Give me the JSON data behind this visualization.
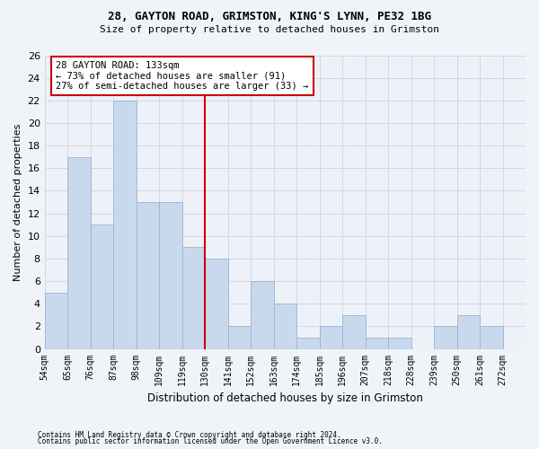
{
  "title1": "28, GAYTON ROAD, GRIMSTON, KING'S LYNN, PE32 1BG",
  "title2": "Size of property relative to detached houses in Grimston",
  "xlabel": "Distribution of detached houses by size in Grimston",
  "ylabel": "Number of detached properties",
  "footnote1": "Contains HM Land Registry data © Crown copyright and database right 2024.",
  "footnote2": "Contains public sector information licensed under the Open Government Licence v3.0.",
  "bin_labels": [
    "54sqm",
    "65sqm",
    "76sqm",
    "87sqm",
    "98sqm",
    "109sqm",
    "119sqm",
    "130sqm",
    "141sqm",
    "152sqm",
    "163sqm",
    "174sqm",
    "185sqm",
    "196sqm",
    "207sqm",
    "218sqm",
    "228sqm",
    "239sqm",
    "250sqm",
    "261sqm",
    "272sqm"
  ],
  "bar_values": [
    5,
    17,
    11,
    22,
    13,
    13,
    9,
    8,
    2,
    6,
    4,
    1,
    2,
    3,
    1,
    1,
    0,
    2,
    3,
    2,
    0
  ],
  "bar_color": "#c8d9ee",
  "bar_edge_color": "#9ab4d4",
  "ylim": [
    0,
    26
  ],
  "yticks": [
    0,
    2,
    4,
    6,
    8,
    10,
    12,
    14,
    16,
    18,
    20,
    22,
    24,
    26
  ],
  "vline_bin_index": 7,
  "marker_label": "28 GAYTON ROAD: 133sqm",
  "annotation_line1": "← 73% of detached houses are smaller (91)",
  "annotation_line2": "27% of semi-detached houses are larger (33) →",
  "annotation_box_color": "#ffffff",
  "annotation_box_edge": "#cc0000",
  "vline_color": "#cc0000",
  "grid_color": "#d0d8e8",
  "bg_color": "#e8eef8",
  "plot_bg_color": "#eef2f8",
  "fig_bg_color": "#f0f4f8"
}
